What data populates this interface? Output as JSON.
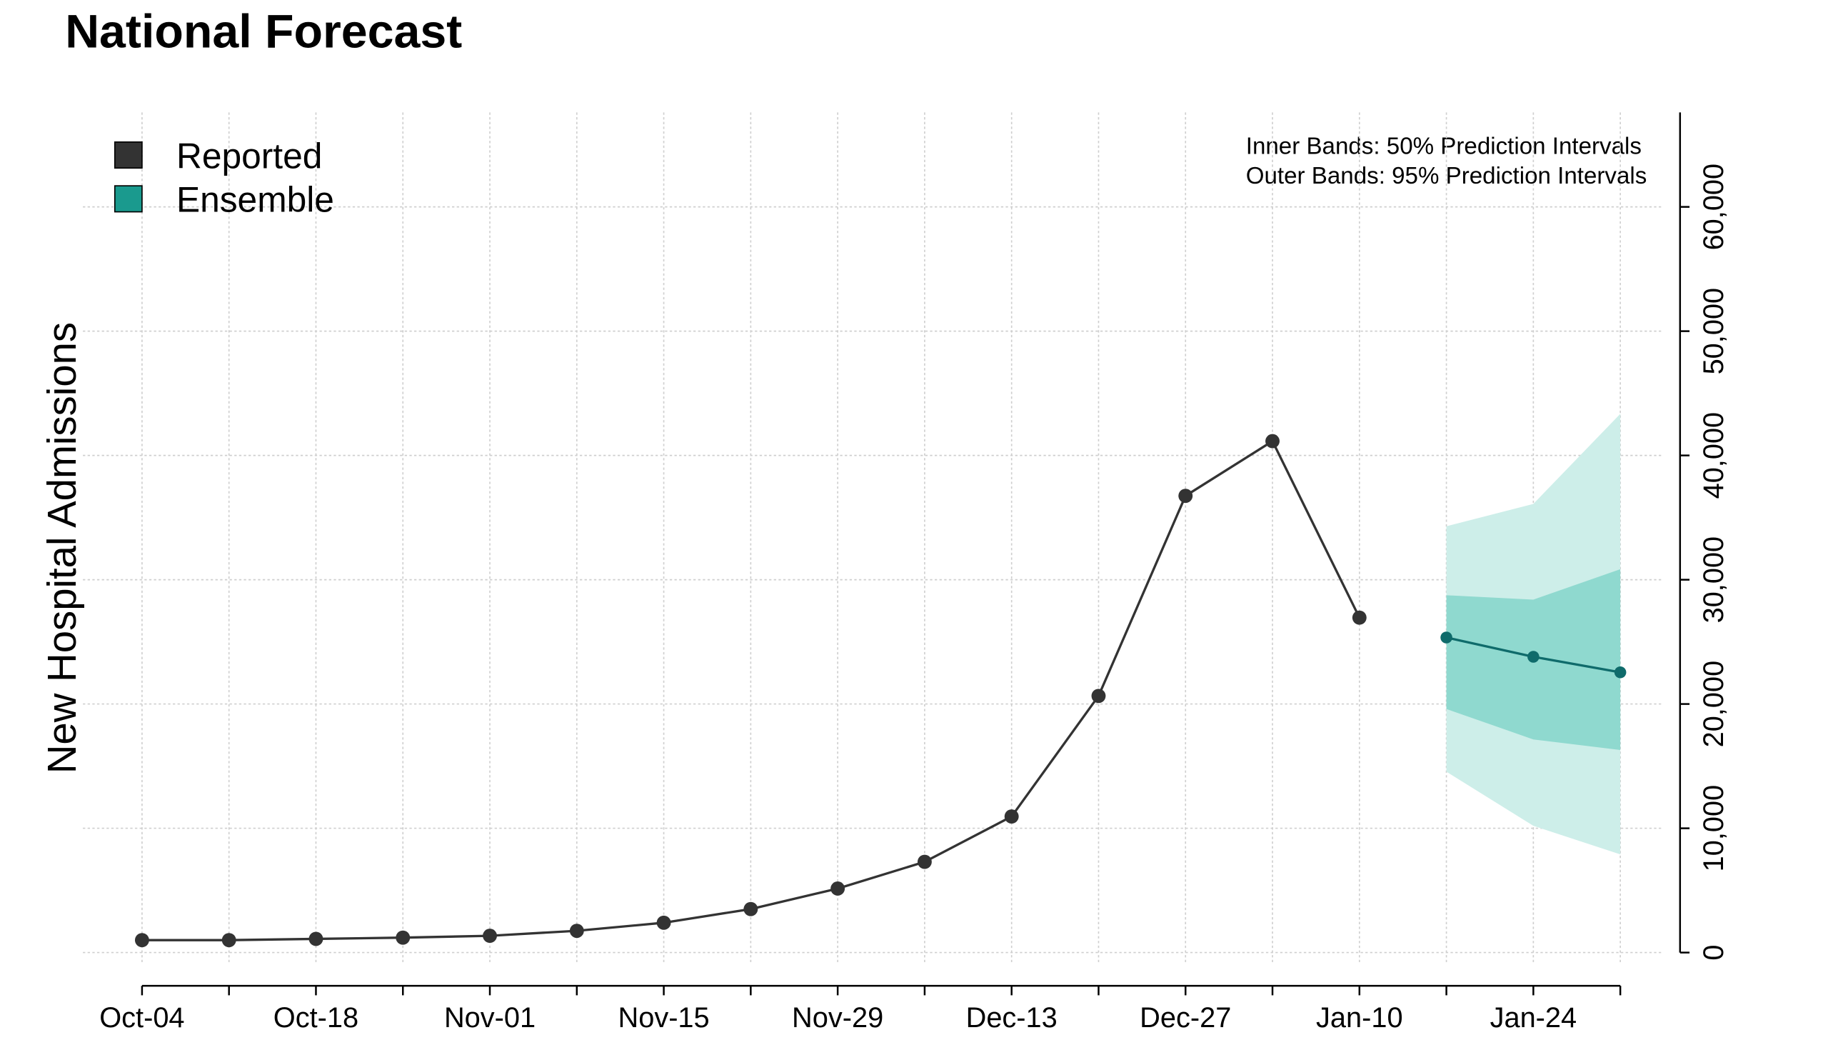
{
  "chart_data": {
    "type": "line",
    "title": "National Forecast",
    "y_label": "New Hospital Admissions",
    "annotations": [
      "Inner Bands: 50% Prediction Intervals",
      "Outer Bands: 95% Prediction Intervals"
    ],
    "categories": [
      "Oct-04",
      null,
      "Oct-18",
      null,
      "Nov-01",
      null,
      "Nov-15",
      null,
      "Nov-29",
      null,
      "Dec-13",
      null,
      "Dec-27",
      null,
      "Jan-10",
      null,
      "Jan-24",
      null
    ],
    "series": [
      {
        "name": "Reported",
        "color": "#333333",
        "values": [
          1000,
          1000,
          1100,
          1200,
          1350,
          1750,
          2400,
          3500,
          5150,
          7300,
          10950,
          20650,
          36750,
          41150,
          26950,
          null,
          null,
          null
        ]
      },
      {
        "name": "Ensemble",
        "color": "#0f6b6b",
        "legend_color": "#1a9a8e",
        "inner_band_color": "#8fd9cf",
        "outer_band_color": "#cdeee9",
        "values": [
          null,
          null,
          null,
          null,
          null,
          null,
          null,
          null,
          null,
          null,
          null,
          null,
          null,
          null,
          null,
          25350,
          23800,
          22550
        ],
        "lower_50": [
          null,
          null,
          null,
          null,
          null,
          null,
          null,
          null,
          null,
          null,
          null,
          null,
          null,
          null,
          null,
          19600,
          17150,
          16300
        ],
        "upper_50": [
          null,
          null,
          null,
          null,
          null,
          null,
          null,
          null,
          null,
          null,
          null,
          null,
          null,
          null,
          null,
          28750,
          28400,
          30850
        ],
        "lower_95": [
          null,
          null,
          null,
          null,
          null,
          null,
          null,
          null,
          null,
          null,
          null,
          null,
          null,
          null,
          null,
          14550,
          10200,
          7900
        ],
        "upper_95": [
          null,
          null,
          null,
          null,
          null,
          null,
          null,
          null,
          null,
          null,
          null,
          null,
          null,
          null,
          null,
          34300,
          36100,
          43350
        ]
      }
    ],
    "ylim": [
      -2200,
      67600
    ],
    "yticks": [
      0,
      {
        "value": 10000,
        "label": "10,000"
      },
      {
        "value": 20000,
        "label": "20,000"
      },
      {
        "value": 30000,
        "label": "30,000"
      },
      {
        "value": 40000,
        "label": "40,000"
      },
      {
        "value": 50000,
        "label": "50,000"
      },
      {
        "value": 60000,
        "label": "60,000"
      }
    ],
    "y_axis_side": "right",
    "grid": true,
    "legend_position": "upper left"
  }
}
